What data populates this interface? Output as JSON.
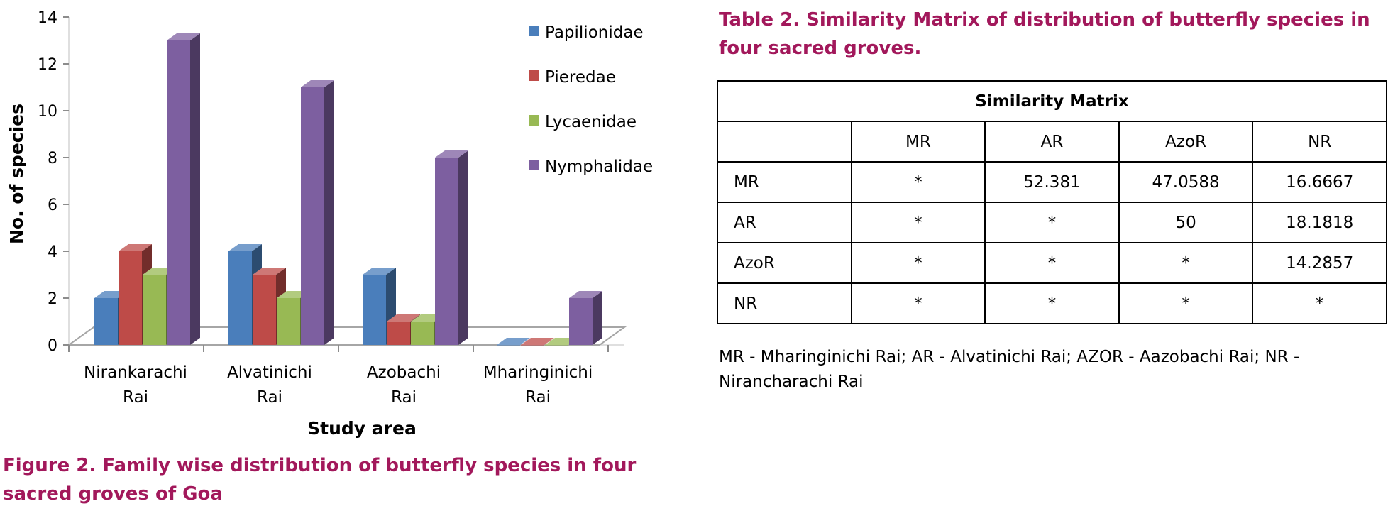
{
  "chart_data": {
    "type": "bar",
    "title": "",
    "xlabel": "Study area",
    "ylabel": "No. of species",
    "ylim": [
      0,
      14
    ],
    "yticks": [
      "0",
      "2",
      "4",
      "6",
      "8",
      "10",
      "12",
      "14"
    ],
    "categories": [
      [
        "Nirankarachi",
        "Rai"
      ],
      [
        "Alvatinichi",
        "Rai"
      ],
      [
        "Azobachi",
        "Rai"
      ],
      [
        "Mharinginichi",
        "Rai"
      ]
    ],
    "series": [
      {
        "name": "Papilionidae",
        "values": [
          2,
          4,
          3,
          0
        ],
        "color": "#4a7ebb"
      },
      {
        "name": "Pieredae",
        "values": [
          4,
          3,
          1,
          0
        ],
        "color": "#be4b48"
      },
      {
        "name": "Lycaenidae",
        "values": [
          3,
          2,
          1,
          0
        ],
        "color": "#98b954"
      },
      {
        "name": "Nymphalidae",
        "values": [
          13,
          11,
          8,
          2
        ],
        "color": "#7d5fa0"
      }
    ],
    "legend_position": "top-right",
    "grid": false
  },
  "figure_caption": "Figure 2. Family wise distribution of butterfly species in four sacred groves of Goa",
  "table_caption": "Table 2. Similarity Matrix of distribution of butterfly species in four sacred groves.",
  "matrix": {
    "title": "Similarity Matrix",
    "columns": [
      "",
      "MR",
      "AR",
      "AzoR",
      "NR"
    ],
    "rows": [
      [
        "MR",
        "*",
        "52.381",
        "47.0588",
        "16.6667"
      ],
      [
        "AR",
        "*",
        "*",
        "50",
        "18.1818"
      ],
      [
        "AzoR",
        "*",
        "*",
        "*",
        "14.2857"
      ],
      [
        "NR",
        "*",
        "*",
        "*",
        "*"
      ]
    ]
  },
  "footnote": "MR - Mharinginichi Rai; AR - Alvatinichi Rai; AZOR - Aazobachi Rai; NR - Nirancharachi Rai"
}
